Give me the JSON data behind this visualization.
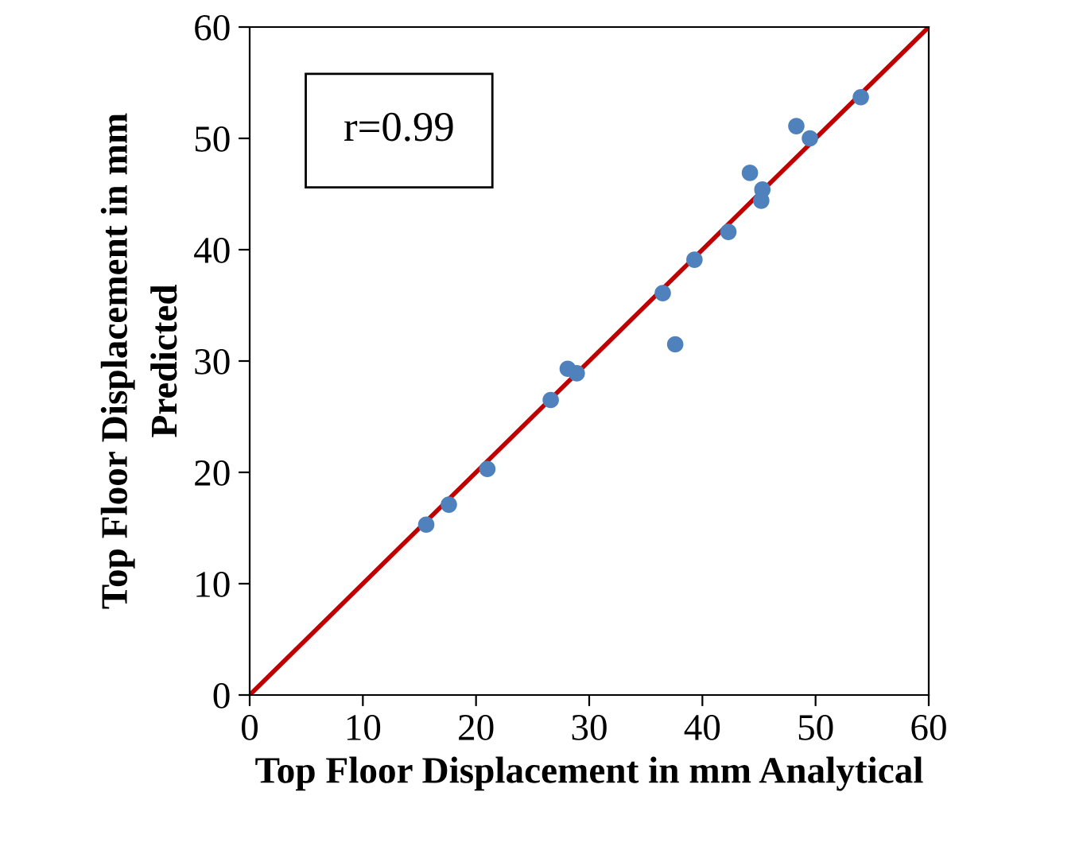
{
  "chart_data": {
    "type": "scatter",
    "xlabel": "Top Floor Displacement in mm Analytical",
    "ylabel": "Top Floor Displacement in mm\nPredicted",
    "annotations": [
      "r=0.99"
    ],
    "xlim": [
      0,
      60
    ],
    "ylim": [
      0,
      60
    ],
    "xticks": [
      0,
      10,
      20,
      30,
      40,
      50,
      60
    ],
    "yticks": [
      0,
      10,
      20,
      30,
      40,
      50,
      60
    ],
    "grid": false,
    "marker": "circle",
    "series": [
      {
        "color": "#4f81bd",
        "x": [
          15.6,
          17.6,
          21.0,
          26.6,
          28.1,
          28.9,
          36.5,
          37.6,
          39.3,
          42.3,
          44.2,
          45.3,
          45.2,
          48.3,
          49.5,
          54.0
        ],
        "values": [
          15.3,
          17.1,
          20.3,
          26.5,
          29.3,
          28.9,
          36.1,
          31.5,
          39.1,
          41.6,
          46.9,
          45.4,
          44.4,
          51.1,
          50.0,
          53.7
        ]
      },
      {
        "type": "line",
        "color": "#c00000",
        "x": [
          0,
          60
        ],
        "values": [
          0,
          60
        ],
        "marker": "none",
        "line_style": "solid"
      }
    ]
  }
}
